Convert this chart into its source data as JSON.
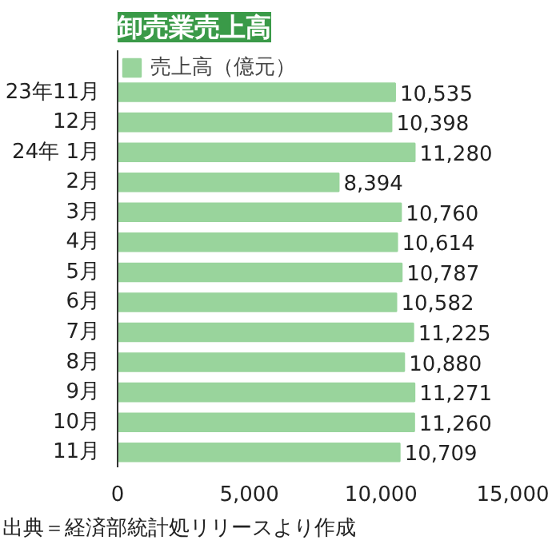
{
  "chart_data": {
    "type": "bar",
    "orientation": "horizontal",
    "title": "卸売業売上高",
    "categories": [
      "23年11月",
      "12月",
      "24年 1月",
      "2月",
      "3月",
      "4月",
      "5月",
      "6月",
      "7月",
      "8月",
      "9月",
      "10月",
      "11月"
    ],
    "series": [
      {
        "name": "売上高（億元）",
        "color": "#99d49c",
        "values": [
          10535,
          10398,
          11280,
          8394,
          10760,
          10614,
          10787,
          10582,
          11225,
          10880,
          11271,
          11260,
          10709
        ]
      }
    ],
    "xlim": [
      0,
      15000
    ],
    "xticks": [
      0,
      {
        "value": 5000,
        "label": "5,000"
      },
      {
        "value": 10000,
        "label": "10,000"
      },
      {
        "value": 15000,
        "label": "15,000"
      }
    ],
    "value_labels": [
      "10,535",
      "10,398",
      "11,280",
      "8,394",
      "10,760",
      "10,614",
      "10,787",
      "10,582",
      "11,225",
      "10,880",
      "11,271",
      "11,260",
      "10,709"
    ],
    "legend": "top left",
    "grid": false,
    "annotations": [
      "出典＝経済部統計処リリースより作成"
    ]
  }
}
